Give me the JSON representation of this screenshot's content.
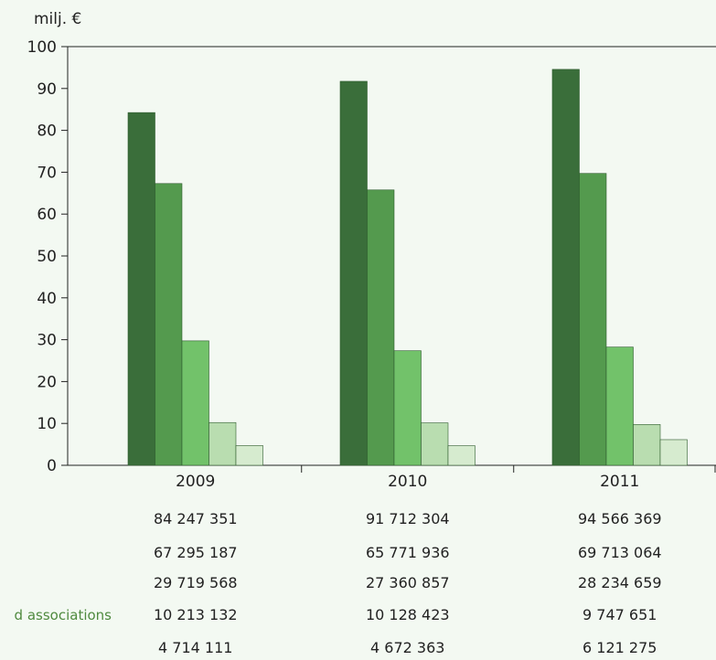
{
  "chart_data": {
    "type": "bar",
    "unit_label": "milj. €",
    "categories": [
      "2009",
      "2010",
      "2011"
    ],
    "ylim": [
      0,
      100
    ],
    "yticks": [
      0,
      10,
      20,
      30,
      40,
      50,
      60,
      70,
      80,
      90,
      100
    ],
    "grid": false,
    "series": [
      {
        "values": [
          84.247351,
          91.712304,
          94.566369
        ],
        "color": "#3a6e3a",
        "table_values": [
          "84 247 351",
          "91 712 304",
          "94 566 369"
        ],
        "row_label": ""
      },
      {
        "values": [
          67.295187,
          65.771936,
          69.713064
        ],
        "color": "#549a4e",
        "table_values": [
          "67 295 187",
          "65 771 936",
          "69 713 064"
        ],
        "row_label": ""
      },
      {
        "values": [
          29.719568,
          27.360857,
          28.234659
        ],
        "color": "#72c26a",
        "table_values": [
          "29 719 568",
          "27 360 857",
          "28 234 659"
        ],
        "row_label": ""
      },
      {
        "values": [
          10.213132,
          10.128423,
          9.747651
        ],
        "color": "#b9ddb0",
        "table_values": [
          "10 213 132",
          "10 128 423",
          "9 747 651"
        ],
        "row_label": "d associations"
      },
      {
        "values": [
          4.714111,
          4.672363,
          6.121275
        ],
        "color": "#d6ebcf",
        "table_values": [
          "4 714 111",
          "4 672 363",
          "6 121 275"
        ],
        "row_label": ""
      }
    ]
  }
}
